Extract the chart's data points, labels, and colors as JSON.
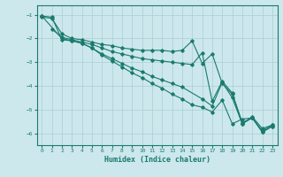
{
  "xlabel": "Humidex (Indice chaleur)",
  "xlim": [
    -0.5,
    23.5
  ],
  "ylim": [
    -6.5,
    -0.6
  ],
  "yticks": [
    -1,
    -2,
    -3,
    -4,
    -5,
    -6
  ],
  "xticks": [
    0,
    1,
    2,
    3,
    4,
    5,
    6,
    7,
    8,
    9,
    10,
    11,
    12,
    13,
    14,
    15,
    16,
    17,
    18,
    19,
    20,
    21,
    22,
    23
  ],
  "bg_color": "#cce8ec",
  "line_color": "#1a7a6e",
  "grid_color": "#aacdd4",
  "lines": [
    {
      "x": [
        0,
        1,
        2,
        3,
        4,
        5,
        6,
        7,
        8,
        9,
        10,
        11,
        12,
        13,
        14,
        15,
        16,
        17,
        18,
        19,
        20,
        21,
        22,
        23
      ],
      "y": [
        -1.1,
        -1.15,
        -1.8,
        -2.0,
        -2.05,
        -2.15,
        -2.25,
        -2.3,
        -2.4,
        -2.45,
        -2.5,
        -2.5,
        -2.5,
        -2.55,
        -2.5,
        -2.1,
        -3.05,
        -2.65,
        -3.9,
        -4.35,
        -5.6,
        -5.3,
        -5.8,
        -5.65
      ]
    },
    {
      "x": [
        1,
        2,
        3,
        4,
        5,
        6,
        7,
        8,
        9,
        10,
        11,
        12,
        13,
        14,
        15,
        16,
        17,
        18,
        19,
        20,
        21,
        22,
        23
      ],
      "y": [
        -1.6,
        -1.95,
        -2.05,
        -2.15,
        -2.25,
        -2.4,
        -2.55,
        -2.65,
        -2.75,
        -2.85,
        -2.9,
        -2.95,
        -3.0,
        -3.05,
        -3.1,
        -2.6,
        -4.65,
        -3.8,
        -4.3,
        -5.55,
        -5.35,
        -5.9,
        -5.65
      ]
    },
    {
      "x": [
        0,
        2,
        3,
        4,
        5,
        6,
        7,
        8,
        9,
        10,
        11,
        12,
        13,
        14,
        16,
        17,
        18,
        19,
        20,
        21,
        22,
        23
      ],
      "y": [
        -1.05,
        -2.0,
        -2.1,
        -2.2,
        -2.4,
        -2.65,
        -2.85,
        -3.05,
        -3.25,
        -3.4,
        -3.6,
        -3.75,
        -3.9,
        -4.05,
        -4.55,
        -4.85,
        -3.85,
        -4.5,
        -5.6,
        -5.35,
        -5.95,
        -5.7
      ]
    },
    {
      "x": [
        0,
        1,
        2,
        3,
        4,
        5,
        6,
        7,
        8,
        9,
        10,
        11,
        12,
        13,
        14,
        15,
        16,
        17,
        18,
        19,
        20,
        21,
        22,
        23
      ],
      "y": [
        -1.05,
        -1.1,
        -2.05,
        -2.1,
        -2.2,
        -2.4,
        -2.7,
        -2.95,
        -3.2,
        -3.45,
        -3.65,
        -3.9,
        -4.1,
        -4.35,
        -4.55,
        -4.8,
        -4.9,
        -5.1,
        -4.6,
        -5.6,
        -5.4,
        -5.35,
        -5.95,
        -5.7
      ]
    }
  ]
}
